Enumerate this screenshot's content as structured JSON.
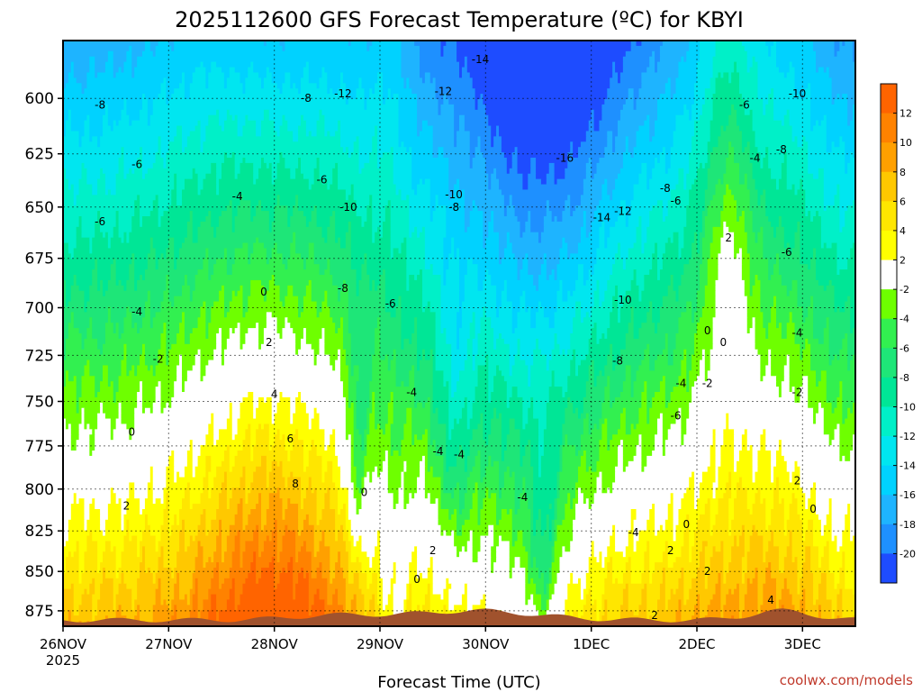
{
  "chart_data": {
    "type": "heatmap",
    "title": "2025112600 GFS Forecast Temperature (ºC) for KBYI",
    "xlabel": "Forecast Time (UTC)",
    "ylabel": "",
    "x_ticks": [
      "26NOV",
      "27NOV",
      "28NOV",
      "29NOV",
      "30NOV",
      "1DEC",
      "2DEC",
      "3DEC"
    ],
    "x_year_label": "2025",
    "xlim_days": [
      0,
      7.5
    ],
    "y_ticks": [
      600,
      625,
      650,
      675,
      700,
      725,
      750,
      775,
      800,
      825,
      850,
      875
    ],
    "ylim": [
      575,
      885
    ],
    "y_scale": "pressure (reversed)",
    "grid": true,
    "colorbar": {
      "levels": [
        -20,
        -18,
        -16,
        -14,
        -12,
        -10,
        -8,
        -6,
        -4,
        -2,
        2,
        4,
        6,
        8,
        10,
        12
      ],
      "colors": [
        "#1e4cff",
        "#1e90ff",
        "#1eb4ff",
        "#00d2ff",
        "#00e6f0",
        "#00f0c8",
        "#00e696",
        "#1ee678",
        "#32f050",
        "#6eff00",
        "#ffffff",
        "#ffff00",
        "#ffe600",
        "#ffc800",
        "#ffa000",
        "#ff8200",
        "#ff6400"
      ],
      "placement": "right"
    },
    "surface_color": "#a0522d",
    "contour_labels": [
      {
        "t": 0.35,
        "p": 603,
        "v": "-8"
      },
      {
        "t": 0.7,
        "p": 630,
        "v": "-6"
      },
      {
        "t": 0.35,
        "p": 657,
        "v": "-6"
      },
      {
        "t": 1.65,
        "p": 645,
        "v": "-4"
      },
      {
        "t": 2.3,
        "p": 600,
        "v": "-8"
      },
      {
        "t": 2.45,
        "p": 637,
        "v": "-6"
      },
      {
        "t": 2.65,
        "p": 598,
        "v": "-12"
      },
      {
        "t": 2.7,
        "p": 650,
        "v": "-10"
      },
      {
        "t": 3.6,
        "p": 597,
        "v": "-12"
      },
      {
        "t": 3.95,
        "p": 583,
        "v": "-14"
      },
      {
        "t": 3.7,
        "p": 644,
        "v": "-10"
      },
      {
        "t": 3.7,
        "p": 650,
        "v": "-8"
      },
      {
        "t": 4.75,
        "p": 627,
        "v": "-16"
      },
      {
        "t": 5.1,
        "p": 655,
        "v": "-14"
      },
      {
        "t": 5.3,
        "p": 652,
        "v": "-12"
      },
      {
        "t": 5.3,
        "p": 696,
        "v": "-10"
      },
      {
        "t": 5.25,
        "p": 728,
        "v": "-8"
      },
      {
        "t": 5.7,
        "p": 641,
        "v": "-8"
      },
      {
        "t": 5.8,
        "p": 647,
        "v": "-6"
      },
      {
        "t": 6.45,
        "p": 603,
        "v": "-6"
      },
      {
        "t": 6.55,
        "p": 627,
        "v": "-4"
      },
      {
        "t": 6.95,
        "p": 598,
        "v": "-10"
      },
      {
        "t": 6.8,
        "p": 623,
        "v": "-8"
      },
      {
        "t": 6.85,
        "p": 672,
        "v": "-6"
      },
      {
        "t": 0.7,
        "p": 702,
        "v": "-4"
      },
      {
        "t": 0.9,
        "p": 727,
        "v": "-2"
      },
      {
        "t": 0.65,
        "p": 767,
        "v": "0"
      },
      {
        "t": 0.6,
        "p": 810,
        "v": "2"
      },
      {
        "t": 1.9,
        "p": 692,
        "v": "0"
      },
      {
        "t": 1.95,
        "p": 718,
        "v": "2"
      },
      {
        "t": 2.0,
        "p": 746,
        "v": "4"
      },
      {
        "t": 2.15,
        "p": 771,
        "v": "6"
      },
      {
        "t": 2.2,
        "p": 797,
        "v": "8"
      },
      {
        "t": 2.65,
        "p": 690,
        "v": "-8"
      },
      {
        "t": 3.1,
        "p": 698,
        "v": "-6"
      },
      {
        "t": 2.85,
        "p": 802,
        "v": "0"
      },
      {
        "t": 3.3,
        "p": 745,
        "v": "-4"
      },
      {
        "t": 3.55,
        "p": 778,
        "v": "-4"
      },
      {
        "t": 3.75,
        "p": 780,
        "v": "-4"
      },
      {
        "t": 3.35,
        "p": 855,
        "v": "0"
      },
      {
        "t": 3.5,
        "p": 837,
        "v": "2"
      },
      {
        "t": 4.35,
        "p": 805,
        "v": "-4"
      },
      {
        "t": 5.4,
        "p": 826,
        "v": "-4"
      },
      {
        "t": 5.8,
        "p": 758,
        "v": "-6"
      },
      {
        "t": 5.85,
        "p": 740,
        "v": "-4"
      },
      {
        "t": 6.1,
        "p": 740,
        "v": "-2"
      },
      {
        "t": 6.3,
        "p": 665,
        "v": "2"
      },
      {
        "t": 6.1,
        "p": 712,
        "v": "0"
      },
      {
        "t": 6.25,
        "p": 718,
        "v": "0"
      },
      {
        "t": 5.9,
        "p": 821,
        "v": "0"
      },
      {
        "t": 5.75,
        "p": 837,
        "v": "2"
      },
      {
        "t": 6.1,
        "p": 850,
        "v": "2"
      },
      {
        "t": 6.95,
        "p": 713,
        "v": "-4"
      },
      {
        "t": 6.95,
        "p": 745,
        "v": "-2"
      },
      {
        "t": 6.95,
        "p": 795,
        "v": "2"
      },
      {
        "t": 7.1,
        "p": 812,
        "v": "0"
      },
      {
        "t": 6.7,
        "p": 868,
        "v": "4"
      },
      {
        "t": 5.6,
        "p": 878,
        "v": "2"
      }
    ]
  },
  "credit": "coolwx.com/models"
}
